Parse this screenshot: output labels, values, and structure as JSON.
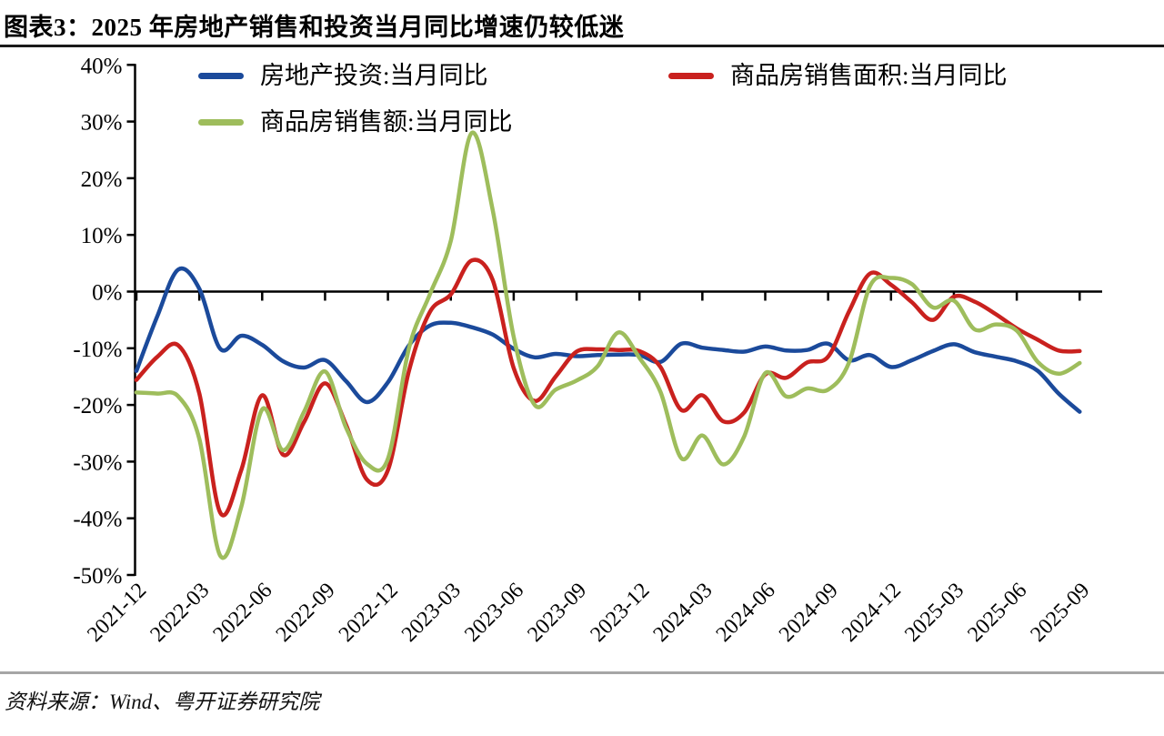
{
  "title": "图表3：2025 年房地产销售和投资当月同比增速仍较低迷",
  "footer": {
    "source": "资料来源：Wind、粤开证券研究院"
  },
  "colors": {
    "investment": "#1b4a9b",
    "sales_area": "#c9211e",
    "sales_value": "#9ebd5c",
    "axis": "#000000",
    "title_rule": "#1a1a1a",
    "footer_rule": "#a6a6a6"
  },
  "legend": [
    {
      "label": "房地产投资:当月同比",
      "series": "investment"
    },
    {
      "label": "商品房销售面积:当月同比",
      "series": "sales_area"
    },
    {
      "label": "商品房销售额:当月同比",
      "series": "sales_value"
    }
  ],
  "chart_data": {
    "type": "line",
    "title": "图表3：2025 年房地产销售和投资当月同比增速仍较低迷",
    "xlabel": "",
    "ylabel": "",
    "ylim": [
      -50,
      40
    ],
    "ytick_step": 10,
    "ytick_format": "percent",
    "grid": false,
    "legend_position": "top",
    "smooth": true,
    "x": [
      "2021-12",
      "2022-01",
      "2022-02",
      "2022-03",
      "2022-04",
      "2022-05",
      "2022-06",
      "2022-07",
      "2022-08",
      "2022-09",
      "2022-10",
      "2022-11",
      "2022-12",
      "2023-01",
      "2023-02",
      "2023-03",
      "2023-04",
      "2023-05",
      "2023-06",
      "2023-07",
      "2023-08",
      "2023-09",
      "2023-10",
      "2023-11",
      "2023-12",
      "2024-01",
      "2024-02",
      "2024-03",
      "2024-04",
      "2024-05",
      "2024-06",
      "2024-07",
      "2024-08",
      "2024-09",
      "2024-10",
      "2024-11",
      "2024-12",
      "2025-01",
      "2025-02",
      "2025-03",
      "2025-04",
      "2025-05",
      "2025-06",
      "2025-07",
      "2025-08",
      "2025-09"
    ],
    "xtick_every": 3,
    "xtick_labels": [
      "2021-12",
      "2022-03",
      "2022-06",
      "2022-09",
      "2022-12",
      "2023-03",
      "2023-06",
      "2023-09",
      "2023-12",
      "2024-03",
      "2024-06",
      "2024-09",
      "2024-12",
      "2025-03",
      "2025-06",
      "2025-09"
    ],
    "series": [
      {
        "name": "房地产投资:当月同比",
        "color": "#1b4a9b",
        "values": [
          -14.0,
          -4.3,
          3.9,
          0.5,
          -10.1,
          -7.8,
          -9.4,
          -12.3,
          -13.4,
          -12.1,
          -15.8,
          -19.5,
          -16.0,
          -9.5,
          -6.0,
          -5.5,
          -6.3,
          -7.6,
          -10.1,
          -11.6,
          -11.0,
          -11.4,
          -11.2,
          -11.1,
          -11.2,
          -12.4,
          -9.2,
          -9.9,
          -10.3,
          -10.6,
          -9.7,
          -10.4,
          -10.3,
          -9.2,
          -12.1,
          -11.2,
          -13.3,
          -12.1,
          -10.5,
          -9.3,
          -10.7,
          -11.5,
          -12.3,
          -14.0,
          -18.0,
          -21.2
        ]
      },
      {
        "name": "商品房销售面积:当月同比",
        "color": "#c9211e",
        "values": [
          -15.6,
          -11.5,
          -9.5,
          -18.0,
          -39.0,
          -31.5,
          -18.3,
          -28.8,
          -23.0,
          -16.2,
          -23.5,
          -33.2,
          -31.5,
          -14.0,
          -3.6,
          -0.5,
          5.5,
          2.0,
          -13.5,
          -19.3,
          -15.0,
          -10.6,
          -10.2,
          -10.3,
          -10.5,
          -13.3,
          -20.9,
          -18.3,
          -22.9,
          -21.3,
          -14.6,
          -15.2,
          -12.5,
          -11.5,
          -3.5,
          3.2,
          1.2,
          -1.9,
          -5.0,
          -0.9,
          -1.8,
          -4.0,
          -6.5,
          -8.5,
          -10.4,
          -10.5
        ]
      },
      {
        "name": "商品房销售额:当月同比",
        "color": "#9ebd5c",
        "values": [
          -17.8,
          -18.0,
          -18.5,
          -26.0,
          -46.6,
          -38.0,
          -20.8,
          -28.0,
          -21.2,
          -14.1,
          -24.0,
          -30.4,
          -29.5,
          -10.0,
          -0.5,
          9.0,
          28.0,
          14.3,
          -8.0,
          -20.0,
          -17.3,
          -15.7,
          -13.2,
          -7.2,
          -11.7,
          -17.7,
          -29.4,
          -25.4,
          -30.5,
          -25.5,
          -14.4,
          -18.5,
          -17.1,
          -17.3,
          -12.5,
          1.0,
          2.4,
          1.3,
          -2.8,
          -1.6,
          -6.7,
          -5.8,
          -6.9,
          -12.4,
          -14.5,
          -12.6
        ]
      }
    ]
  }
}
